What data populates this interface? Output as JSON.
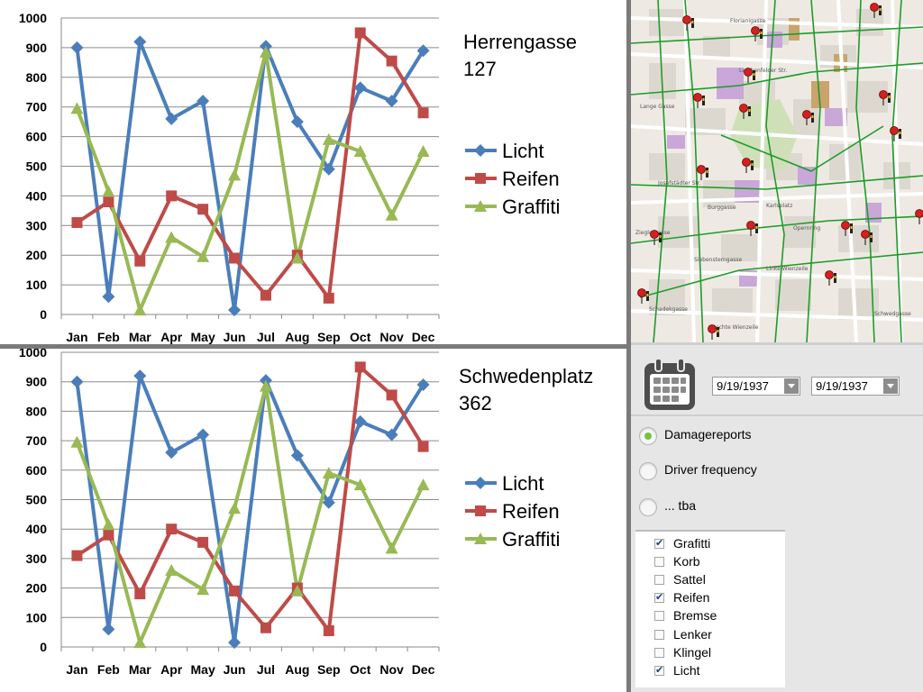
{
  "chart_data": [
    {
      "type": "line",
      "title": "Herrengasse\n127",
      "categories": [
        "Jan",
        "Feb",
        "Mar",
        "Apr",
        "May",
        "Jun",
        "Jul",
        "Aug",
        "Sep",
        "Oct",
        "Nov",
        "Dec"
      ],
      "ylim": [
        0,
        1000
      ],
      "yticks": [
        0,
        100,
        200,
        300,
        400,
        500,
        600,
        700,
        800,
        900,
        1000
      ],
      "grid": true,
      "legend_placement": "right",
      "series": [
        {
          "name": "Licht",
          "color": "#4a7ebb",
          "marker": "diamond",
          "values": [
            900,
            60,
            920,
            660,
            720,
            15,
            905,
            650,
            490,
            765,
            720,
            890
          ]
        },
        {
          "name": "Reifen",
          "color": "#be4b48",
          "marker": "square",
          "values": [
            310,
            380,
            180,
            400,
            355,
            190,
            65,
            200,
            55,
            950,
            855,
            680
          ]
        },
        {
          "name": "Graffiti",
          "color": "#98b954",
          "marker": "triangle",
          "values": [
            695,
            415,
            15,
            260,
            195,
            470,
            885,
            190,
            590,
            550,
            335,
            550
          ]
        }
      ]
    },
    {
      "type": "line",
      "title": "Schwedenplatz\n362",
      "categories": [
        "Jan",
        "Feb",
        "Mar",
        "Apr",
        "May",
        "Jun",
        "Jul",
        "Aug",
        "Sep",
        "Oct",
        "Nov",
        "Dec"
      ],
      "ylim": [
        0,
        1000
      ],
      "yticks": [
        0,
        100,
        200,
        300,
        400,
        500,
        600,
        700,
        800,
        900,
        1000
      ],
      "grid": true,
      "legend_placement": "right",
      "series": [
        {
          "name": "Licht",
          "color": "#4a7ebb",
          "marker": "diamond",
          "values": [
            900,
            60,
            920,
            660,
            720,
            15,
            905,
            650,
            490,
            765,
            720,
            890
          ]
        },
        {
          "name": "Reifen",
          "color": "#be4b48",
          "marker": "square",
          "values": [
            310,
            380,
            180,
            400,
            355,
            190,
            65,
            200,
            55,
            950,
            855,
            680
          ]
        },
        {
          "name": "Graffiti",
          "color": "#98b954",
          "marker": "triangle",
          "values": [
            695,
            415,
            15,
            260,
            195,
            470,
            885,
            190,
            590,
            550,
            335,
            550
          ]
        }
      ]
    }
  ],
  "map": {
    "icons": "map-pin-icon",
    "street_labels": [
      "Lange Gasse",
      "Florianigasse",
      "Josefstädter Str.",
      "Lerchenfelder Str.",
      "Burggasse",
      "Siebensterngasse",
      "Zieglergasse",
      "Schadekgasse",
      "Linke Wienzeile",
      "Rechte Wienzeile",
      "Karlsplatz",
      "Opernring",
      "Schwedgasse"
    ]
  },
  "controls": {
    "calendar_icon": "calendar-icon",
    "date_from": "9/19/1937",
    "date_to": "9/19/1937",
    "radios": [
      {
        "label": "Damagereports",
        "checked": true
      },
      {
        "label": "Driver frequency",
        "checked": false
      },
      {
        "label": "... tba",
        "checked": false
      }
    ],
    "checkboxes": [
      {
        "label": "Grafitti",
        "checked": true
      },
      {
        "label": "Korb",
        "checked": false
      },
      {
        "label": "Sattel",
        "checked": false
      },
      {
        "label": "Reifen",
        "checked": true
      },
      {
        "label": "Bremse",
        "checked": false
      },
      {
        "label": "Lenker",
        "checked": false
      },
      {
        "label": "Klingel",
        "checked": false
      },
      {
        "label": "Licht",
        "checked": true
      }
    ]
  }
}
